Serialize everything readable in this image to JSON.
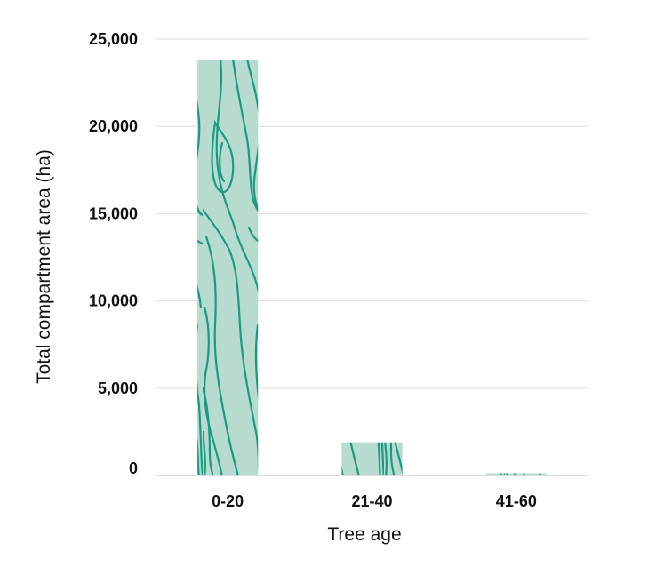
{
  "chart_data": {
    "type": "bar",
    "categories": [
      "0-20",
      "21-40",
      "41-60"
    ],
    "values": [
      23800,
      1900,
      130
    ],
    "xlabel": "Tree age",
    "ylabel": "Total compartment area (ha)",
    "ylim": [
      0,
      25000
    ],
    "yticks": [
      0,
      5000,
      10000,
      15000,
      20000,
      25000
    ],
    "ytick_labels": [
      "0",
      "5,000",
      "10,000",
      "15,000",
      "20,000",
      "25,000"
    ],
    "grid": true,
    "legend": "none",
    "colors": {
      "bar_fill": "#b7dbd1",
      "grain": "#1b9a80",
      "grid": "#dddddd"
    }
  }
}
